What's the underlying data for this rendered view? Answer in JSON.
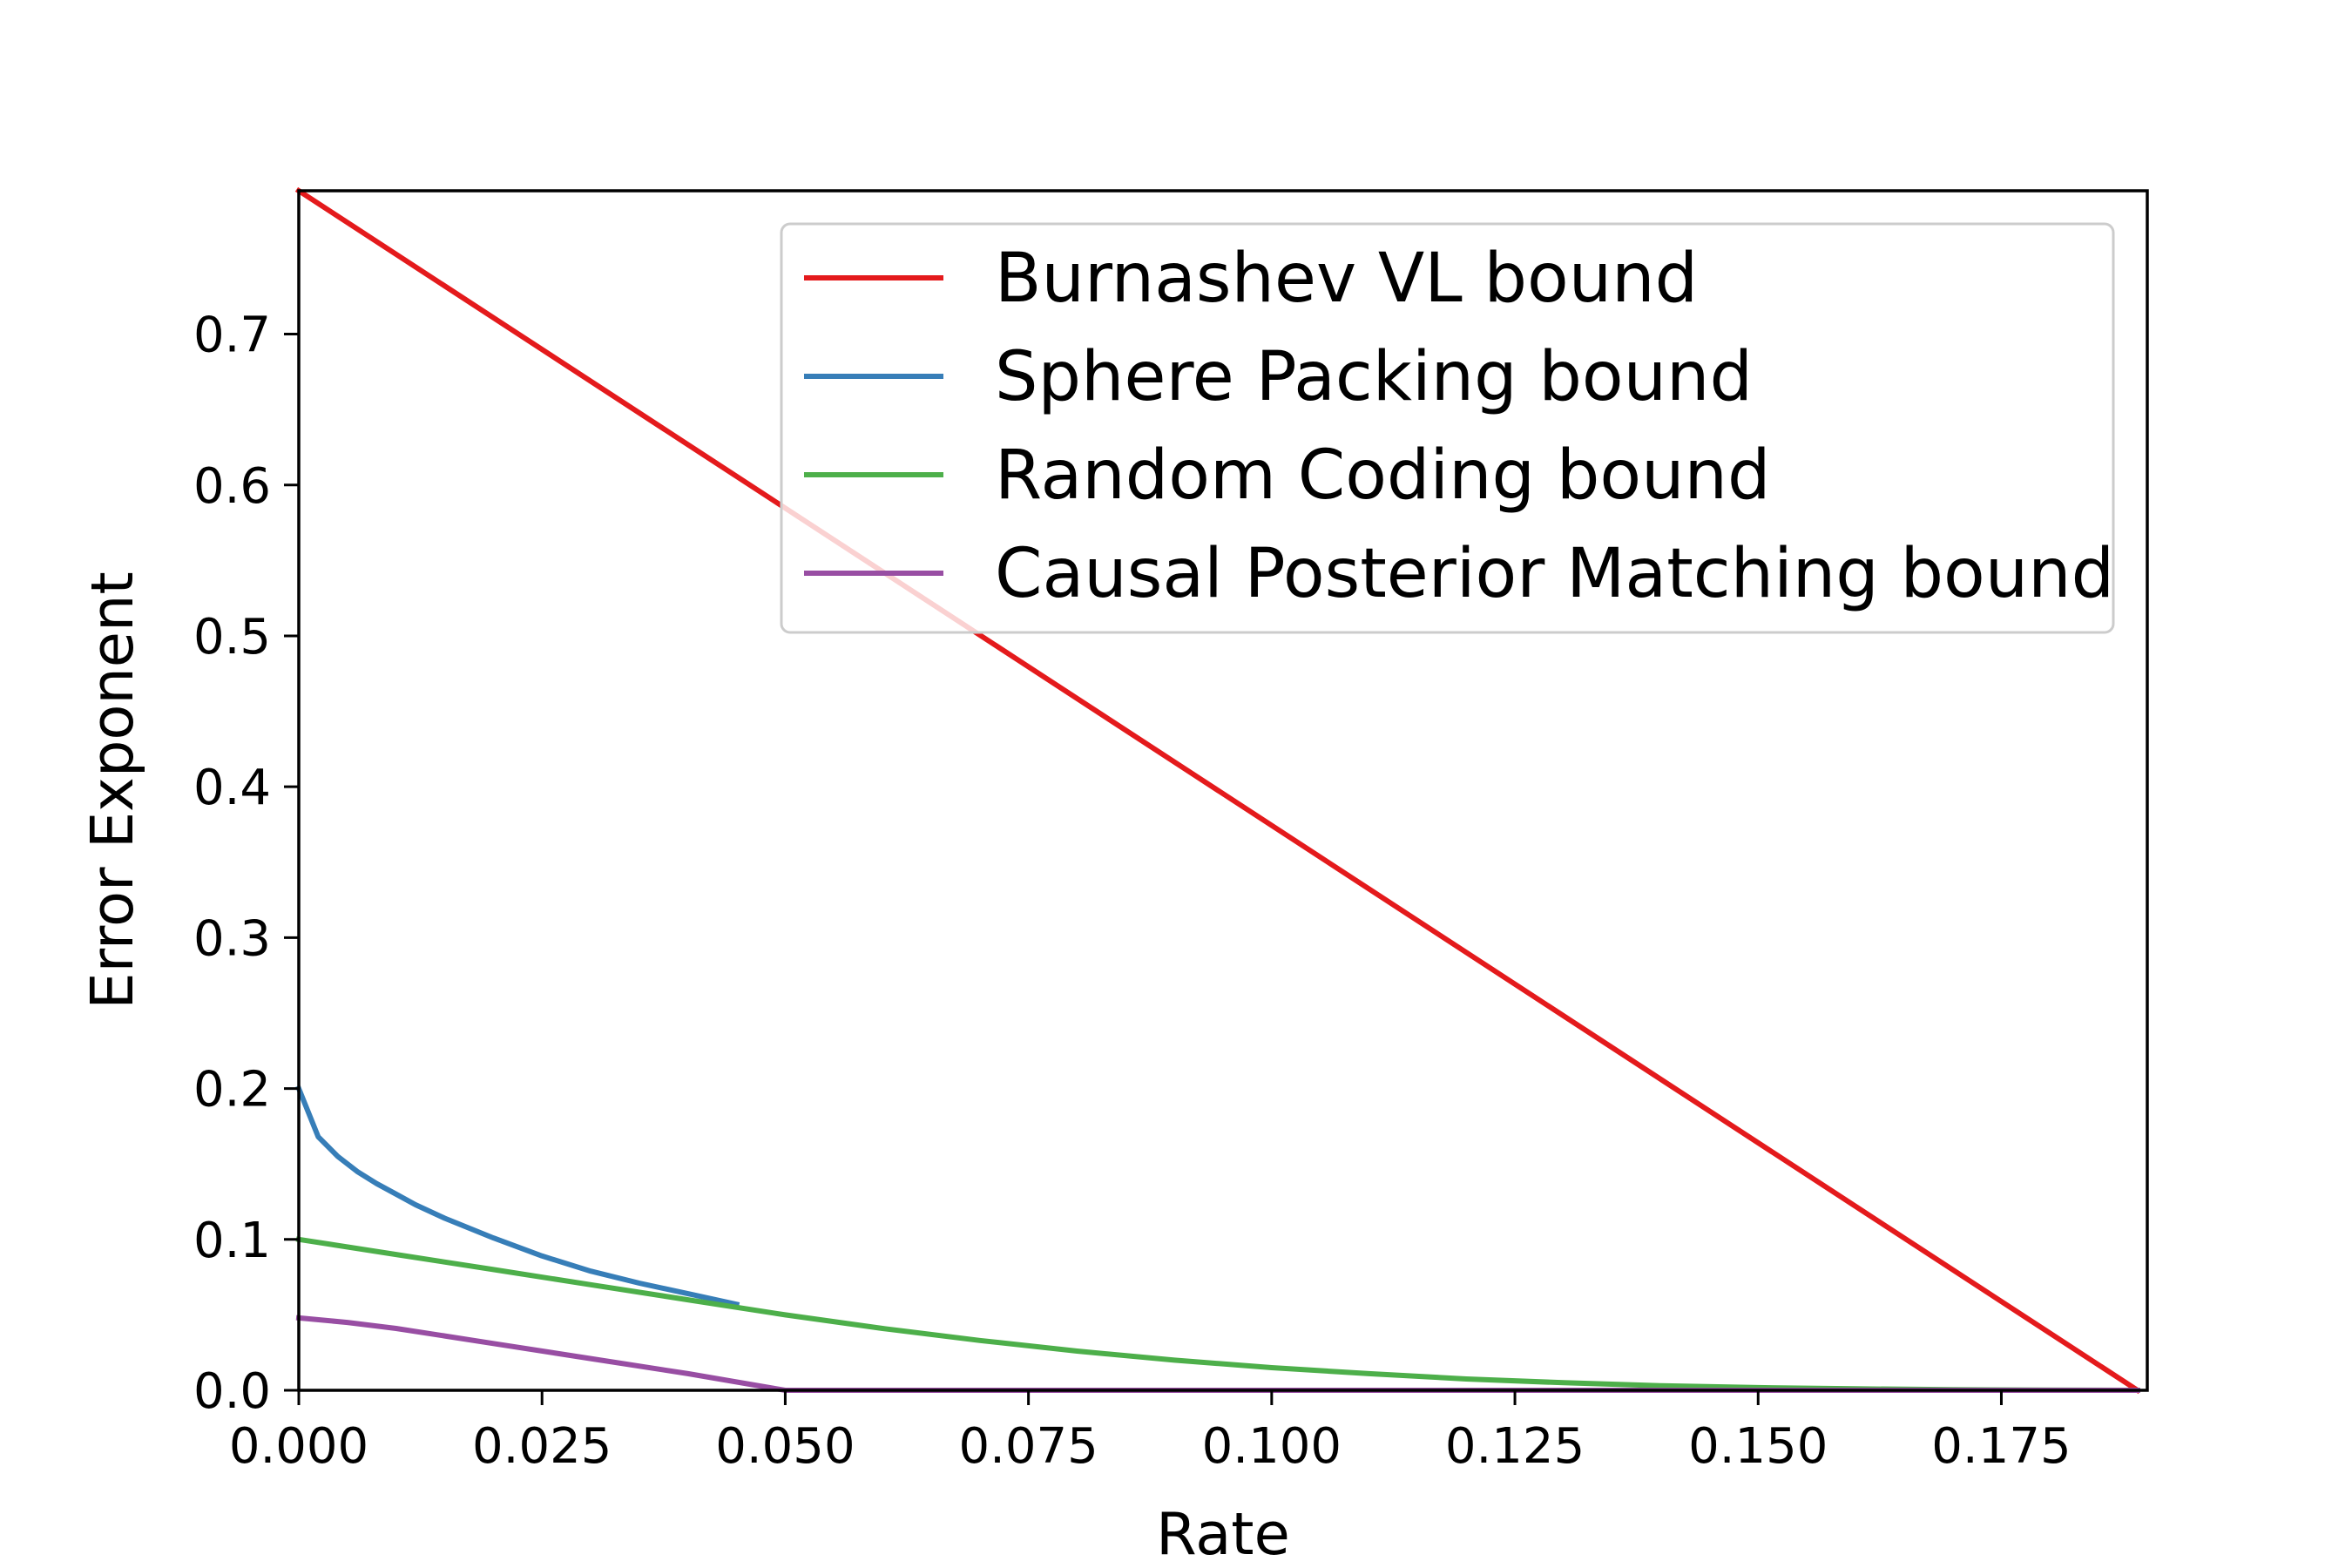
{
  "chart_data": {
    "type": "line",
    "title": "",
    "xlabel": "Rate",
    "ylabel": "Error Exponent",
    "xlim": [
      0,
      0.19
    ],
    "ylim": [
      0,
      0.795
    ],
    "x_ticks": [
      "0.000",
      "0.025",
      "0.050",
      "0.075",
      "0.100",
      "0.125",
      "0.150",
      "0.175"
    ],
    "y_ticks": [
      "0.0",
      "0.1",
      "0.2",
      "0.3",
      "0.4",
      "0.5",
      "0.6",
      "0.7"
    ],
    "grid": false,
    "legend_position": "upper-right",
    "series": [
      {
        "name": "Burnashev VL bound",
        "color": "#e41a1c",
        "x": [
          0.0,
          0.189
        ],
        "y": [
          0.795,
          0.0
        ]
      },
      {
        "name": "Sphere Packing bound",
        "color": "#377eb8",
        "x": [
          0.0,
          0.002,
          0.004,
          0.006,
          0.008,
          0.01,
          0.012,
          0.015,
          0.02,
          0.025,
          0.03,
          0.035,
          0.04,
          0.045
        ],
        "y": [
          0.2,
          0.168,
          0.155,
          0.145,
          0.137,
          0.13,
          0.123,
          0.114,
          0.101,
          0.089,
          0.079,
          0.071,
          0.064,
          0.057
        ]
      },
      {
        "name": "Random Coding bound",
        "color": "#4daf4a",
        "x": [
          0.0,
          0.01,
          0.02,
          0.03,
          0.04,
          0.05,
          0.06,
          0.07,
          0.08,
          0.09,
          0.1,
          0.11,
          0.12,
          0.13,
          0.14,
          0.15,
          0.16,
          0.17,
          0.18,
          0.189
        ],
        "y": [
          0.1,
          0.09,
          0.08,
          0.07,
          0.06,
          0.05,
          0.041,
          0.033,
          0.026,
          0.02,
          0.015,
          0.011,
          0.0075,
          0.005,
          0.003,
          0.0018,
          0.001,
          0.0004,
          0.0001,
          0.0
        ]
      },
      {
        "name": "Causal Posterior Matching bound",
        "color": "#984ea3",
        "x": [
          0.0,
          0.005,
          0.01,
          0.015,
          0.02,
          0.03,
          0.04,
          0.05,
          0.075,
          0.1,
          0.125,
          0.15,
          0.175,
          0.189
        ],
        "y": [
          0.048,
          0.045,
          0.041,
          0.036,
          0.031,
          0.021,
          0.011,
          0.0,
          0.0,
          0.0,
          0.0,
          0.0,
          0.0,
          0.0
        ]
      }
    ]
  }
}
